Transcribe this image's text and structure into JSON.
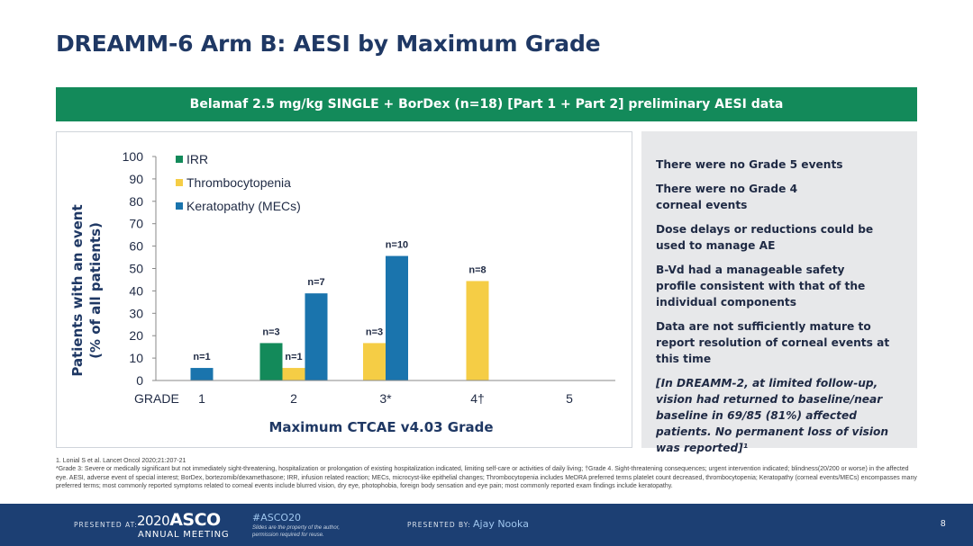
{
  "title": "DREAMM-6 Arm B: AESI by Maximum Grade",
  "banner": "Belamaf 2.5 mg/kg SINGLE + BorDex (n=18) [Part 1 + Part 2] preliminary AESI data",
  "colors": {
    "irr": "#138a5a",
    "thrombo": "#f5cd45",
    "kerato": "#1a74ad",
    "banner": "#138a5a",
    "footer": "#1c3f73"
  },
  "chart_data": {
    "type": "bar",
    "categories": [
      "1",
      "2",
      "3*",
      "4†",
      "5"
    ],
    "xlabel_prefix": "GRADE",
    "xlabel": "Maximum CTCAE v4.03 Grade",
    "ylabel_line1": "Patients with an event",
    "ylabel_line2": "(% of all patients)",
    "ylim": [
      0,
      100
    ],
    "yticks": [
      0,
      10,
      20,
      30,
      40,
      50,
      60,
      70,
      80,
      90,
      100
    ],
    "legend_position": "top-left",
    "grid": false,
    "series": [
      {
        "name": "IRR",
        "color": "#138a5a",
        "values": [
          null,
          16.7,
          null,
          null,
          null
        ],
        "labels": [
          "",
          "n=3",
          "",
          "",
          ""
        ]
      },
      {
        "name": "Thrombocytopenia",
        "color": "#f5cd45",
        "values": [
          null,
          5.6,
          16.7,
          44.4,
          null
        ],
        "labels": [
          "",
          "n=1",
          "n=3",
          "n=8",
          ""
        ]
      },
      {
        "name": "Keratopathy (MECs)",
        "color": "#1a74ad",
        "values": [
          5.6,
          38.9,
          55.6,
          null,
          null
        ],
        "labels": [
          "n=1",
          "n=7",
          "n=10",
          "",
          ""
        ]
      }
    ]
  },
  "side_panel": {
    "points": [
      "There were no Grade 5 events",
      "There were no Grade 4 corneal events",
      "Dose delays or reductions could be used to manage AE",
      "B-Vd had a manageable safety profile consistent with that of the individual components",
      "Data are not sufficiently mature to report resolution of corneal events at this time"
    ],
    "note": "[In DREAMM-2, at limited follow-up, vision had returned to baseline/near baseline in 69/85 (81%) affected patients. No permanent loss of vision was reported]¹"
  },
  "footnotes": {
    "ref": "1. Lonial S et al. Lancet Oncol 2020;21:207-21",
    "text": "*Grade 3: Severe or medically significant but not immediately sight-threatening, hospitalization or prolongation of existing hospitalization indicated, limiting self-care or activities of daily living; †Grade 4. Sight-threatening consequences; urgent intervention indicated; blindness(20/200 or worse) in the affected eye. AESI, adverse event of special interest; BorDex, bortezomib/dexamethasone; IRR, infusion related reaction; MECs, microcyst-like epithelial changes; Thrombocytopenia includes MeDRA preferred terms platelet count decreased, thrombocytopenia; Keratopathy (corneal events/MECs) encompasses many preferred terms; most commonly reported symptoms related to corneal events include blurred vision, dry eye, photophobia, foreign body sensation and eye pain; most commonly reported exam findings include keratopathy."
  },
  "footer": {
    "presented_at": "PRESENTED AT:",
    "asco_year": "2020",
    "asco_name": "ASCO",
    "annual_meeting": "ANNUAL MEETING",
    "hashtag": "#ASCO20",
    "rights": "Slides are the property of the author, permission required for reuse.",
    "presented_by": "PRESENTED BY:",
    "presenter": "Ajay Nooka",
    "page": "8"
  }
}
